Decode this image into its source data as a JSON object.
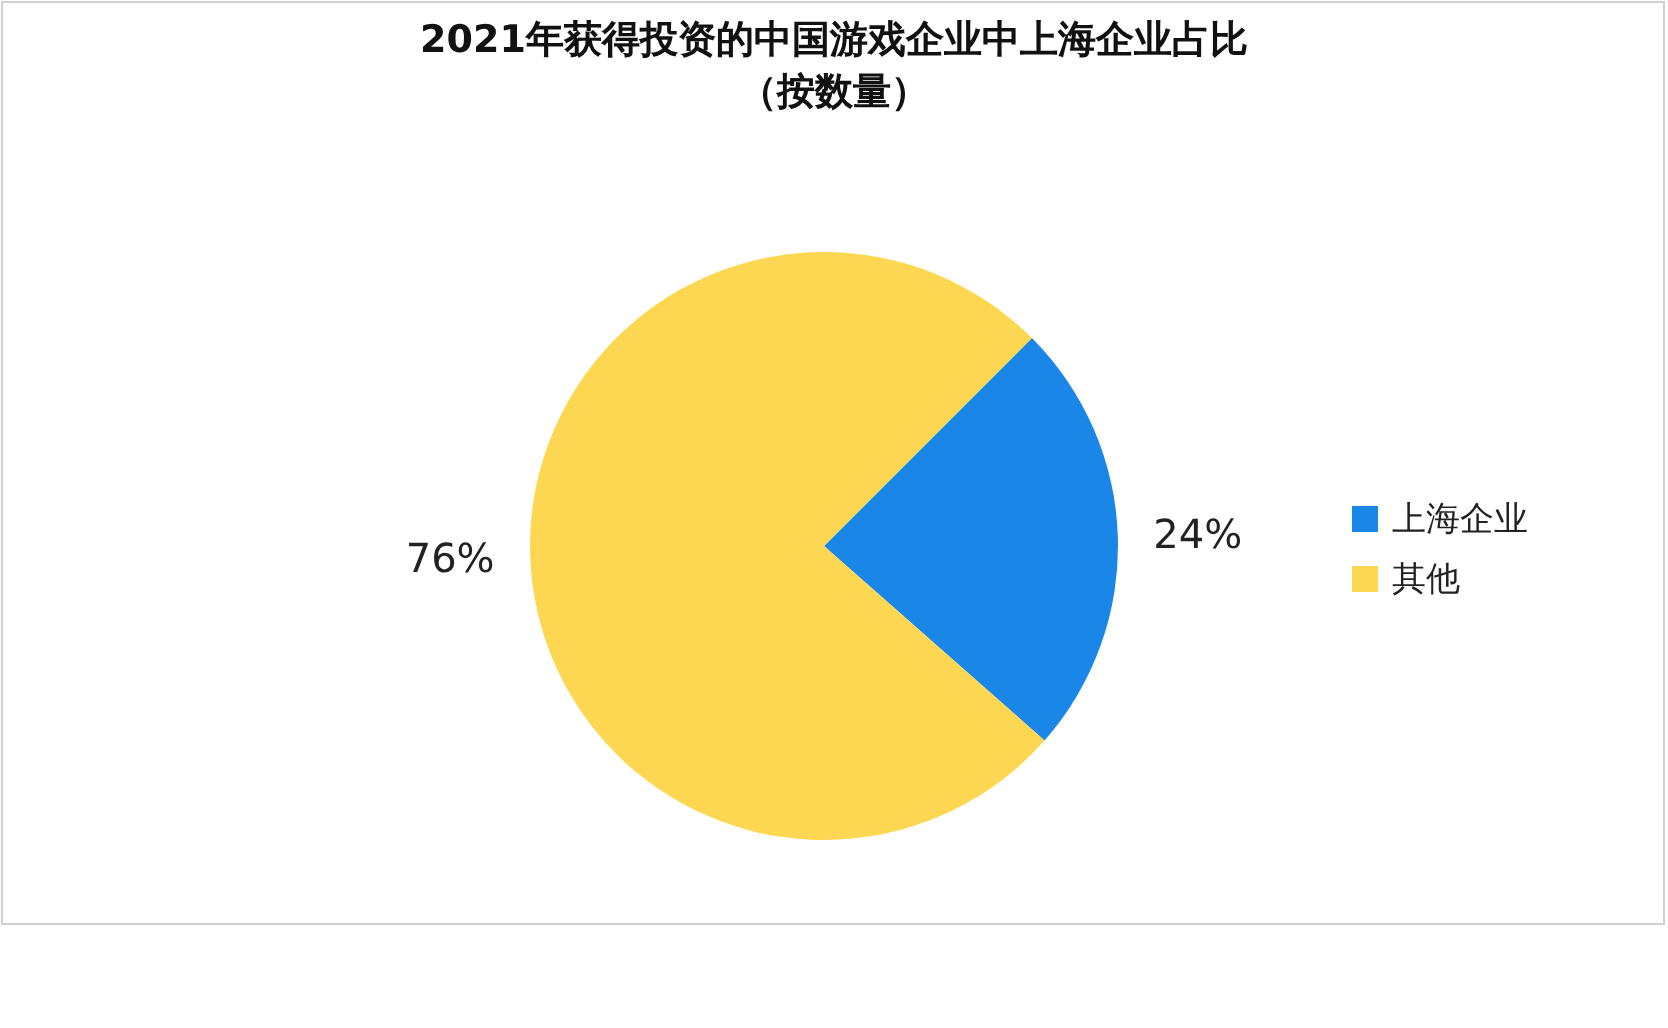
{
  "chart_data": {
    "type": "pie",
    "title": "2021年获得投资的中国游戏企业中上海企业占比",
    "subtitle": "（按数量）",
    "categories": [
      "上海企业",
      "其他"
    ],
    "values": [
      24,
      76
    ],
    "colors": [
      "#1a86e8",
      "#fdd752"
    ],
    "value_labels": [
      "24%",
      "76%"
    ],
    "legend": "right"
  }
}
